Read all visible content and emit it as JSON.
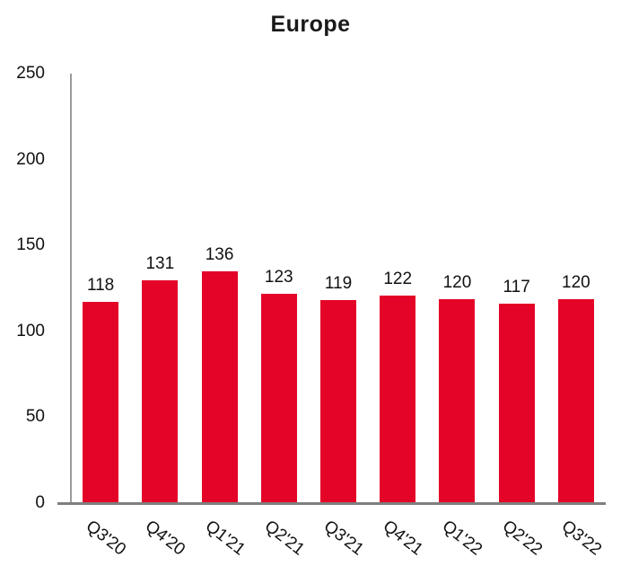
{
  "chart_data": {
    "type": "bar",
    "title": "Europe",
    "categories": [
      "Q3'20",
      "Q4'20",
      "Q1'21",
      "Q2'21",
      "Q3'21",
      "Q4'21",
      "Q1'22",
      "Q2'22",
      "Q3'22"
    ],
    "values": [
      118,
      131,
      136,
      123,
      119,
      122,
      120,
      117,
      120
    ],
    "value_labels_shown": true,
    "xlabel": "",
    "ylabel": "",
    "ylim": [
      0,
      250
    ],
    "yticks": [
      0,
      50,
      100,
      150,
      200,
      250
    ],
    "grid": false,
    "legend_position": "none",
    "bar_color": "#e40428",
    "x_axis_color": "#7f7f7f",
    "y_axis_color": "#9a9a9a",
    "text_color": "#111111",
    "background_color": "#ffffff"
  }
}
